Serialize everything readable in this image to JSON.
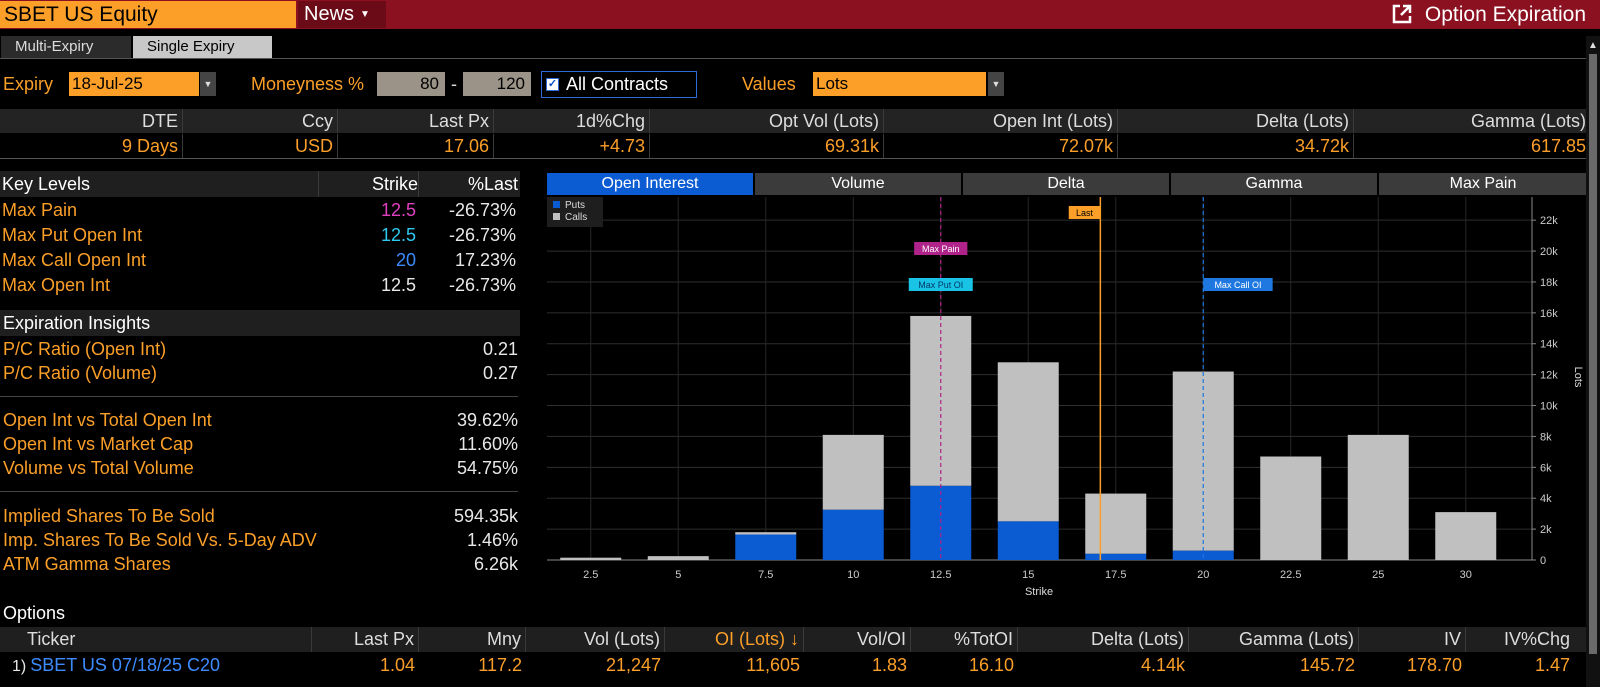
{
  "titlebar": {
    "security": "SBET US Equity",
    "news_label": "News",
    "function_title": "Option Expiration"
  },
  "tabs": [
    "Multi-Expiry",
    "Single Expiry"
  ],
  "controls": {
    "expiry_label": "Expiry",
    "expiry_value": "18-Jul-25",
    "moneyness_label": "Moneyness %",
    "moneyness_low": "80",
    "moneyness_sep": "-",
    "moneyness_high": "120",
    "all_contracts_label": "All Contracts",
    "values_label": "Values",
    "values_value": "Lots"
  },
  "stats": {
    "headers": [
      "DTE",
      "Ccy",
      "Last Px",
      "1d%Chg",
      "Opt Vol (Lots)",
      "Open Int (Lots)",
      "Delta (Lots)",
      "Gamma (Lots)"
    ],
    "values": [
      "9 Days",
      "USD",
      "17.06",
      "+4.73",
      "69.31k",
      "72.07k",
      "34.72k",
      "617.85"
    ]
  },
  "key_levels": {
    "headers": [
      "Key Levels",
      "Strike",
      "%Last"
    ],
    "rows": [
      {
        "label": "Max Pain",
        "strike": "12.5",
        "pct": "-26.73%",
        "color": "#e040c0"
      },
      {
        "label": "Max Put Open Int",
        "strike": "12.5",
        "pct": "-26.73%",
        "color": "#2ec9f0"
      },
      {
        "label": "Max Call Open Int",
        "strike": "20",
        "pct": "17.23%",
        "color": "#3d8cff"
      },
      {
        "label": "Max Open Int",
        "strike": "12.5",
        "pct": "-26.73%",
        "color": "#e8e8e8"
      }
    ]
  },
  "insights": {
    "title": "Expiration Insights",
    "groups": [
      [
        {
          "label": "P/C Ratio (Open Int)",
          "value": "0.21"
        },
        {
          "label": "P/C Ratio (Volume)",
          "value": "0.27"
        }
      ],
      [
        {
          "label": "Open Int vs Total Open Int",
          "value": "39.62%"
        },
        {
          "label": "Open Int vs Market Cap",
          "value": "11.60%"
        },
        {
          "label": "Volume vs Total Volume",
          "value": "54.75%"
        }
      ],
      [
        {
          "label": "Implied Shares To Be Sold",
          "value": "594.35k"
        },
        {
          "label": "Imp. Shares To Be Sold Vs. 5-Day ADV",
          "value": "1.46%"
        },
        {
          "label": "ATM Gamma Shares",
          "value": "6.26k"
        }
      ]
    ]
  },
  "chart_tabs": [
    "Open Interest",
    "Volume",
    "Delta",
    "Gamma",
    "Max Pain"
  ],
  "chart_data": {
    "type": "bar",
    "stacked": true,
    "categories": [
      "2.5",
      "5",
      "7.5",
      "10",
      "12.5",
      "15",
      "17.5",
      "20",
      "22.5",
      "25",
      "30"
    ],
    "series": [
      {
        "name": "Puts",
        "color": "#0b5bd3",
        "values": [
          0,
          0,
          1650,
          3250,
          4800,
          2500,
          400,
          600,
          0,
          0,
          0
        ]
      },
      {
        "name": "Calls",
        "color": "#c0c0c0",
        "values": [
          150,
          250,
          150,
          4850,
          11000,
          10300,
          3900,
          11600,
          6700,
          8100,
          3100
        ]
      }
    ],
    "xlabel": "Strike",
    "ylabel": "Lots",
    "y_ticks": [
      "0",
      "2k",
      "4k",
      "6k",
      "8k",
      "10k",
      "12k",
      "14k",
      "16k",
      "18k",
      "20k",
      "22k"
    ],
    "ylim": [
      0,
      23500
    ],
    "markers": [
      {
        "label": "Max Pain",
        "strike": 12.5,
        "color": "#b0238a",
        "style": "dashed"
      },
      {
        "label": "Max Put OI",
        "strike": 12.5,
        "color": "#19c3e6",
        "style": "none"
      },
      {
        "label": "Last",
        "strike": 17.06,
        "color": "#fb9f28",
        "style": "solid"
      },
      {
        "label": "Max Call OI",
        "strike": 20,
        "color": "#1f78e0",
        "style": "dashed"
      }
    ],
    "legend_position": "top-left"
  },
  "options": {
    "title": "Options",
    "headers": [
      "Ticker",
      "Last Px",
      "Mny",
      "Vol (Lots)",
      "OI (Lots) ↓",
      "Vol/OI",
      "%TotOI",
      "Delta (Lots)",
      "Gamma (Lots)",
      "IV",
      "IV%Chg"
    ],
    "rows": [
      {
        "idx": "1)",
        "ticker": "SBET US 07/18/25 C20",
        "last": "1.04",
        "mny": "117.2",
        "vol": "21,247",
        "oi": "11,605",
        "voloi": "1.83",
        "totoi": "16.10",
        "delta": "4.14k",
        "gamma": "145.72",
        "iv": "178.70",
        "ivchg": "1.47"
      }
    ]
  }
}
